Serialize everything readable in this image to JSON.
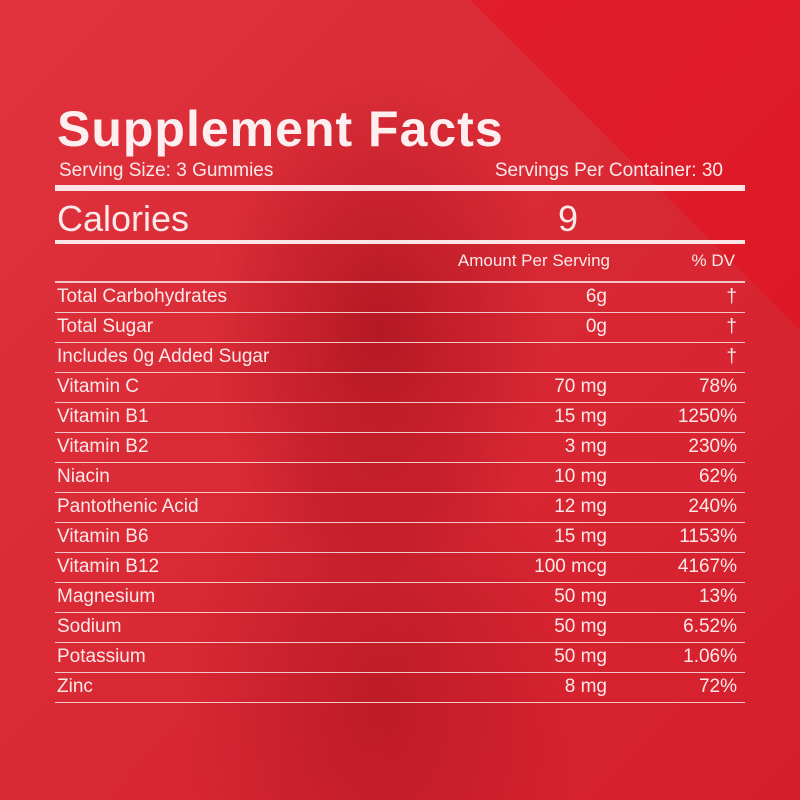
{
  "title": "Supplement Facts",
  "serving_size": "Serving Size: 3 Gummies",
  "servings_per_container": "Servings Per Container: 30",
  "calories_label": "Calories",
  "calories_value": "9",
  "columns": {
    "amount": "Amount Per Serving",
    "dv": "% DV"
  },
  "rows": [
    {
      "name": "Total Carbohydrates",
      "amount": "6g",
      "dv": "†"
    },
    {
      "name": "Total Sugar",
      "amount": "0g",
      "dv": "†"
    },
    {
      "name": "Includes 0g Added Sugar",
      "amount": "",
      "dv": "†"
    },
    {
      "name": "Vitamin C",
      "amount": "70 mg",
      "dv": "78%"
    },
    {
      "name": "Vitamin B1",
      "amount": "15 mg",
      "dv": "1250%"
    },
    {
      "name": "Vitamin B2",
      "amount": "3 mg",
      "dv": "230%"
    },
    {
      "name": "Niacin",
      "amount": "10 mg",
      "dv": "62%"
    },
    {
      "name": "Pantothenic Acid",
      "amount": "12 mg",
      "dv": "240%"
    },
    {
      "name": "Vitamin B6",
      "amount": "15 mg",
      "dv": "1153%"
    },
    {
      "name": "Vitamin B12",
      "amount": "100 mcg",
      "dv": "4167%"
    },
    {
      "name": "Magnesium",
      "amount": "50 mg",
      "dv": "13%"
    },
    {
      "name": "Sodium",
      "amount": "50 mg",
      "dv": "6.52%"
    },
    {
      "name": "Potassium",
      "amount": "50 mg",
      "dv": "1.06%"
    },
    {
      "name": "Zinc",
      "amount": "8 mg",
      "dv": "72%"
    }
  ],
  "colors": {
    "background": "#d92a35",
    "text": "#fbe9ea"
  }
}
